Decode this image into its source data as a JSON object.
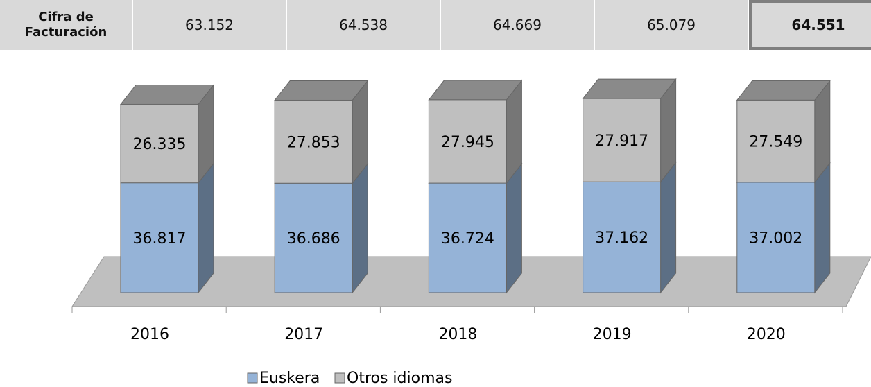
{
  "chart_data": {
    "type": "bar3d_stacked",
    "table": {
      "header": "Cifra de Facturación",
      "values": [
        63152,
        64538,
        64669,
        65079,
        64551
      ],
      "value_labels": [
        "63.152",
        "64.538",
        "64.669",
        "65.079",
        "64.551"
      ]
    },
    "categories": [
      "2016",
      "2017",
      "2018",
      "2019",
      "2020"
    ],
    "series": [
      {
        "name": "Euskera",
        "color": "#95b3d7",
        "values": [
          36817,
          36686,
          36724,
          37162,
          37002
        ],
        "value_labels": [
          "36.817",
          "36.686",
          "36.724",
          "37.162",
          "37.002"
        ]
      },
      {
        "name": "Otros idiomas",
        "color": "#bfbfbf",
        "values": [
          26335,
          27853,
          27945,
          27917,
          27549
        ],
        "value_labels": [
          "26.335",
          "27.853",
          "27.945",
          "27.917",
          "27.549"
        ]
      }
    ],
    "legend": "bottom"
  }
}
